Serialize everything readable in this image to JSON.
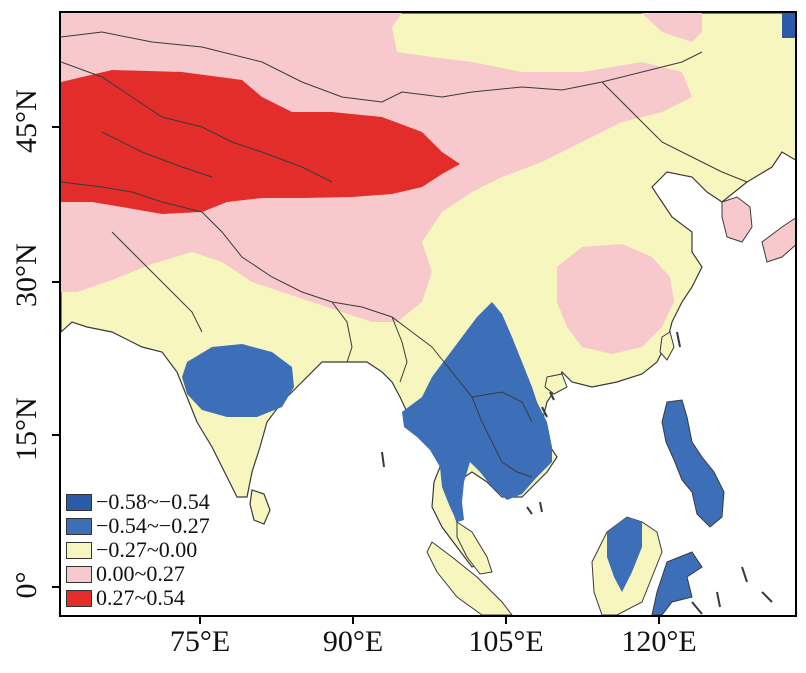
{
  "map": {
    "y_ticks": [
      "45°N",
      "30°N",
      "15°N",
      "0°"
    ],
    "x_ticks": [
      "75°E",
      "90°E",
      "105°E",
      "120°E"
    ],
    "colors": {
      "land_base": "#f7f6bf",
      "pink": "#f7c9cc",
      "red": "#e22d2b",
      "blue": "#3d6fb8",
      "dark_blue": "#2a5aa8",
      "ocean": "#ffffff",
      "border": "#3a3a3a"
    }
  },
  "legend": {
    "items": [
      {
        "label": "−0.58~−0.54",
        "color": "#2a5aa8"
      },
      {
        "label": "−0.54~−0.27",
        "color": "#3d6fb8"
      },
      {
        "label": "−0.27~0.00",
        "color": "#f7f6bf"
      },
      {
        "label": "0.00~0.27",
        "color": "#f7c9cc"
      },
      {
        "label": "0.27~0.54",
        "color": "#e22d2b"
      }
    ]
  }
}
